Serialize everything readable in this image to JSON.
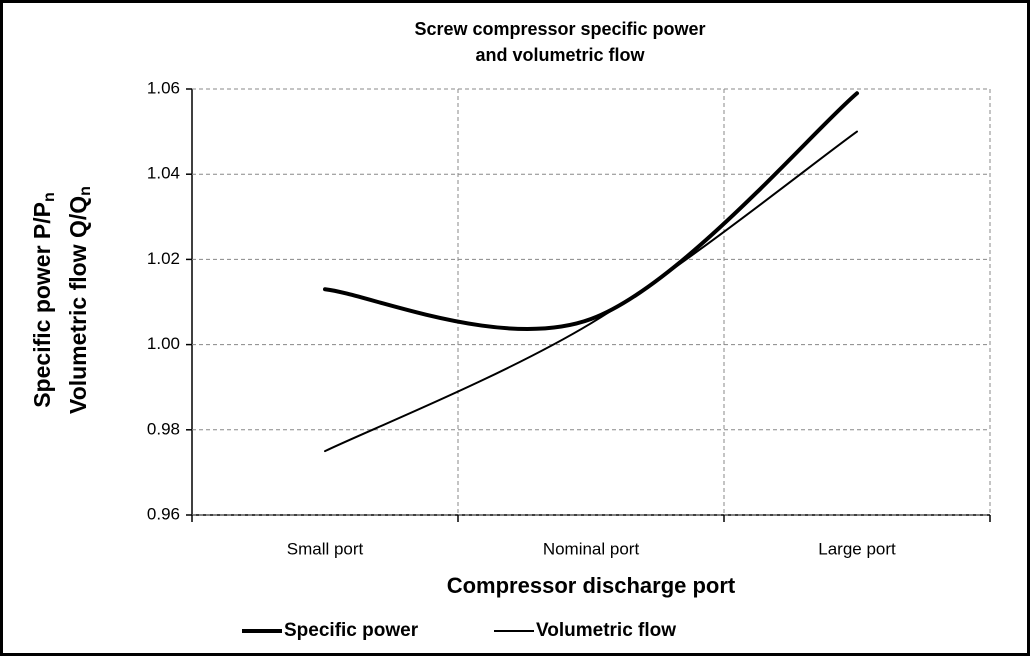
{
  "chart_data": {
    "type": "line",
    "title": [
      "Screw compressor specific power",
      "and volumetric flow"
    ],
    "x_label": "Compressor discharge port",
    "y_label": [
      {
        "text": "Specific power P/P",
        "sub": "n"
      },
      {
        "text": "Volumetric flow Q/Q",
        "sub": "n"
      }
    ],
    "categories": [
      "Small port",
      "Nominal port",
      "Large port"
    ],
    "series": [
      {
        "name": "Specific power",
        "color": "#000000",
        "width": 4,
        "values": [
          1.013,
          1.006,
          1.059
        ]
      },
      {
        "name": "Volumetric flow",
        "color": "#000000",
        "width": 2,
        "values": [
          0.975,
          1.005,
          1.05
        ]
      }
    ],
    "ylim": [
      0.96,
      1.06
    ],
    "yticks": [
      0.96,
      0.98,
      {
        "value": 1.0,
        "label": "1.00"
      },
      1.02,
      1.04,
      1.06
    ],
    "grid": true,
    "smooth": true,
    "legend": "bottom"
  }
}
